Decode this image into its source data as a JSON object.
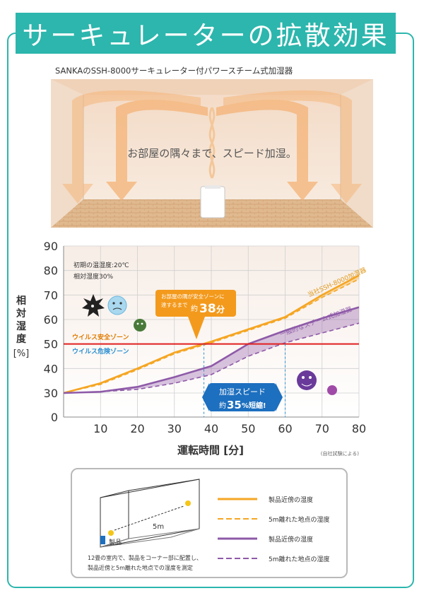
{
  "header": {
    "title": "サーキュレーターの拡散効果"
  },
  "figure": {
    "subtitle": "SANKAのSSH-8000サーキュレーター付パワースチーム式加湿器",
    "room_caption": "お部屋の隅々まで、スピード加湿。"
  },
  "chart_data": {
    "type": "line",
    "ylabel_chars": [
      "相",
      "対",
      "湿",
      "度"
    ],
    "ylabel_unit": "[%]",
    "xlabel": "運転時間 [分]",
    "note": "(自社試験による)",
    "x_ticks": [
      10,
      20,
      30,
      40,
      50,
      60,
      70,
      80
    ],
    "y_ticks": [
      0,
      30,
      40,
      50,
      60,
      70,
      80,
      90
    ],
    "xlim": [
      0,
      80
    ],
    "ylim": [
      0,
      90
    ],
    "conditions": [
      "初期の温湿度:20℃",
      "相対湿度30%"
    ],
    "threshold": {
      "value": 50,
      "safe_label": "ウイルス安全ゾーン",
      "danger_label": "ウイルス危険ゾーン",
      "color": "#e02020"
    },
    "series": [
      {
        "name": "当社SSH-8000加湿器",
        "key": "ours_near",
        "x": [
          0,
          10,
          20,
          30,
          40,
          50,
          60,
          70,
          80
        ],
        "y": [
          30,
          34,
          40,
          46.5,
          51,
          56,
          61,
          70,
          78
        ],
        "color": "#f5a623"
      },
      {
        "name": "",
        "key": "ours_5m",
        "x": [
          0,
          10,
          20,
          30,
          40,
          50,
          60,
          70,
          80
        ],
        "y": [
          30,
          33.5,
          39.5,
          46,
          50.5,
          55.5,
          60.5,
          69,
          76.5
        ],
        "color": "#f5a623"
      },
      {
        "name": "一般的なスチーム式加湿器",
        "key": "gen_near",
        "x": [
          0,
          10,
          20,
          30,
          40,
          50,
          60,
          70,
          80
        ],
        "y": [
          30,
          30.5,
          32.5,
          36.5,
          41,
          50,
          55.5,
          60.5,
          65
        ],
        "color": "#8e5aa8"
      },
      {
        "name": "",
        "key": "gen_5m",
        "x": [
          0,
          10,
          20,
          30,
          40,
          50,
          60,
          70,
          80
        ],
        "y": [
          30,
          30.5,
          31.5,
          34,
          37.5,
          45,
          50.5,
          54.5,
          58.5
        ],
        "color": "#8e5aa8"
      }
    ],
    "callout_orange": {
      "line1": "お部屋の隅が安全ゾーンに",
      "line2": "達するまで",
      "prefix": "約",
      "value": "38",
      "unit": "分",
      "x": 38
    },
    "callout_blue": {
      "line1": "加湿スピード",
      "prefix": "約",
      "value": "35",
      "unit": "%短縮!"
    },
    "vlines_x": [
      38,
      60
    ]
  },
  "legend": {
    "items": [
      {
        "label": "製品近傍の湿度",
        "color": "#f5a623",
        "dashed": false
      },
      {
        "label": "5m離れた地点の湿度",
        "color": "#f5a623",
        "dashed": true
      },
      {
        "label": "製品近傍の湿度",
        "color": "#8e5aa8",
        "dashed": false
      },
      {
        "label": "5m離れた地点の湿度",
        "color": "#8e5aa8",
        "dashed": true
      }
    ],
    "distance_label": "5m",
    "product_label": "製品",
    "caption_line1": "12畳の室内で、製品をコーナー部に配置し、",
    "caption_line2": "製品近傍と5m離れた地点での湿度を測定"
  }
}
